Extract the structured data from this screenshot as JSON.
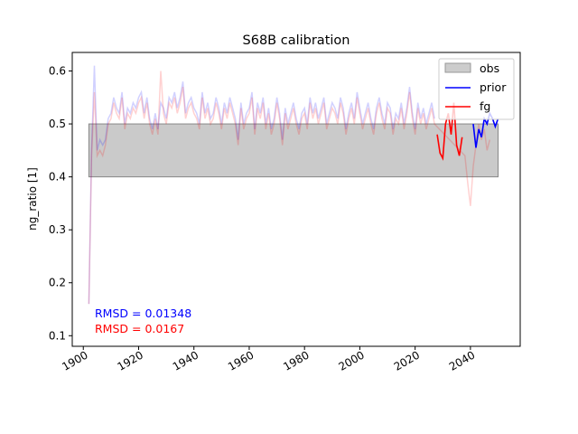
{
  "chart_data": {
    "type": "line",
    "title": "S68B calibration",
    "xlabel": "",
    "ylabel": "ng_ratio [1]",
    "xlim": [
      1896,
      2058
    ],
    "ylim": [
      0.08,
      0.635
    ],
    "xticks": [
      1900,
      1920,
      1940,
      1960,
      1980,
      2000,
      2020,
      2040
    ],
    "yticks": [
      0.1,
      0.2,
      0.3,
      0.4,
      0.5,
      0.6
    ],
    "grid": false,
    "legend": {
      "placement": "top-right",
      "entries": [
        "obs",
        "prior",
        "fg"
      ]
    },
    "obs_band": {
      "name": "obs",
      "x": [
        1902,
        2050
      ],
      "y": [
        0.4,
        0.5
      ],
      "color": "#bdbdbd"
    },
    "series": [
      {
        "name": "prior",
        "color": "#0000ff",
        "x_faint": [
          1902,
          1903,
          1904,
          1905,
          1906,
          1907,
          1908,
          1909,
          1910,
          1911,
          1912,
          1913,
          1914,
          1915,
          1916,
          1917,
          1918,
          1919,
          1920,
          1921,
          1922,
          1923,
          1924,
          1925,
          1926,
          1927,
          1928,
          1929,
          1930,
          1931,
          1932,
          1933,
          1934,
          1935,
          1936,
          1937,
          1938,
          1939,
          1940,
          1941,
          1942,
          1943,
          1944,
          1945,
          1946,
          1947,
          1948,
          1949,
          1950,
          1951,
          1952,
          1953,
          1954,
          1955,
          1956,
          1957,
          1958,
          1959,
          1960,
          1961,
          1962,
          1963,
          1964,
          1965,
          1966,
          1967,
          1968,
          1969,
          1970,
          1971,
          1972,
          1973,
          1974,
          1975,
          1976,
          1977,
          1978,
          1979,
          1980,
          1981,
          1982,
          1983,
          1984,
          1985,
          1986,
          1987,
          1988,
          1989,
          1990,
          1991,
          1992,
          1993,
          1994,
          1995,
          1996,
          1997,
          1998,
          1999,
          2000,
          2001,
          2002,
          2003,
          2004,
          2005,
          2006,
          2007,
          2008,
          2009,
          2010,
          2011,
          2012,
          2013,
          2014,
          2015,
          2016,
          2017,
          2018,
          2019,
          2020,
          2021,
          2022,
          2023,
          2024,
          2025,
          2026,
          2027
        ],
        "y_faint": [
          0.16,
          0.45,
          0.61,
          0.45,
          0.47,
          0.46,
          0.47,
          0.51,
          0.52,
          0.55,
          0.53,
          0.52,
          0.56,
          0.5,
          0.53,
          0.52,
          0.54,
          0.53,
          0.55,
          0.56,
          0.52,
          0.55,
          0.51,
          0.49,
          0.52,
          0.49,
          0.54,
          0.53,
          0.51,
          0.55,
          0.54,
          0.56,
          0.53,
          0.55,
          0.58,
          0.52,
          0.54,
          0.55,
          0.53,
          0.52,
          0.5,
          0.56,
          0.52,
          0.54,
          0.51,
          0.52,
          0.55,
          0.53,
          0.5,
          0.54,
          0.52,
          0.55,
          0.53,
          0.51,
          0.47,
          0.54,
          0.5,
          0.52,
          0.53,
          0.56,
          0.49,
          0.54,
          0.52,
          0.55,
          0.5,
          0.53,
          0.49,
          0.51,
          0.55,
          0.52,
          0.47,
          0.53,
          0.5,
          0.52,
          0.54,
          0.51,
          0.49,
          0.52,
          0.53,
          0.5,
          0.55,
          0.52,
          0.54,
          0.51,
          0.53,
          0.55,
          0.5,
          0.52,
          0.54,
          0.53,
          0.51,
          0.55,
          0.53,
          0.49,
          0.52,
          0.54,
          0.51,
          0.56,
          0.53,
          0.5,
          0.52,
          0.54,
          0.51,
          0.49,
          0.53,
          0.55,
          0.52,
          0.5,
          0.54,
          0.53,
          0.49,
          0.52,
          0.51,
          0.54,
          0.5,
          0.53,
          0.57,
          0.52,
          0.49,
          0.54,
          0.51,
          0.53,
          0.5,
          0.52,
          0.54,
          0.51
        ],
        "x_bold": [
          2041,
          2042,
          2043,
          2044,
          2045,
          2046,
          2047,
          2048,
          2049,
          2050
        ],
        "y_bold": [
          0.5,
          0.455,
          0.49,
          0.475,
          0.51,
          0.5,
          0.52,
          0.51,
          0.495,
          0.51
        ]
      },
      {
        "name": "fg",
        "color": "#ff0000",
        "x_faint": [
          1902,
          1903,
          1904,
          1905,
          1906,
          1907,
          1908,
          1909,
          1910,
          1911,
          1912,
          1913,
          1914,
          1915,
          1916,
          1917,
          1918,
          1919,
          1920,
          1921,
          1922,
          1923,
          1924,
          1925,
          1926,
          1927,
          1928,
          1929,
          1930,
          1931,
          1932,
          1933,
          1934,
          1935,
          1936,
          1937,
          1938,
          1939,
          1940,
          1941,
          1942,
          1943,
          1944,
          1945,
          1946,
          1947,
          1948,
          1949,
          1950,
          1951,
          1952,
          1953,
          1954,
          1955,
          1956,
          1957,
          1958,
          1959,
          1960,
          1961,
          1962,
          1963,
          1964,
          1965,
          1966,
          1967,
          1968,
          1969,
          1970,
          1971,
          1972,
          1973,
          1974,
          1975,
          1976,
          1977,
          1978,
          1979,
          1980,
          1981,
          1982,
          1983,
          1984,
          1985,
          1986,
          1987,
          1988,
          1989,
          1990,
          1991,
          1992,
          1993,
          1994,
          1995,
          1996,
          1997,
          1998,
          1999,
          2000,
          2001,
          2002,
          2003,
          2004,
          2005,
          2006,
          2007,
          2008,
          2009,
          2010,
          2011,
          2012,
          2013,
          2014,
          2015,
          2016,
          2017,
          2018,
          2019,
          2020,
          2021,
          2022,
          2023,
          2024,
          2025,
          2026,
          2027,
          2038,
          2039,
          2040,
          2041,
          2042,
          2043,
          2044,
          2045,
          2046,
          2047
        ],
        "y_faint": [
          0.16,
          0.44,
          0.56,
          0.44,
          0.45,
          0.44,
          0.46,
          0.5,
          0.51,
          0.54,
          0.52,
          0.51,
          0.55,
          0.49,
          0.52,
          0.51,
          0.53,
          0.52,
          0.54,
          0.55,
          0.51,
          0.54,
          0.5,
          0.48,
          0.51,
          0.48,
          0.6,
          0.52,
          0.5,
          0.54,
          0.53,
          0.55,
          0.52,
          0.54,
          0.57,
          0.51,
          0.53,
          0.54,
          0.52,
          0.51,
          0.49,
          0.55,
          0.51,
          0.53,
          0.5,
          0.51,
          0.54,
          0.52,
          0.49,
          0.53,
          0.51,
          0.54,
          0.52,
          0.5,
          0.46,
          0.53,
          0.49,
          0.51,
          0.52,
          0.55,
          0.48,
          0.53,
          0.51,
          0.54,
          0.49,
          0.52,
          0.48,
          0.5,
          0.54,
          0.51,
          0.46,
          0.52,
          0.49,
          0.51,
          0.53,
          0.5,
          0.48,
          0.51,
          0.52,
          0.49,
          0.54,
          0.51,
          0.53,
          0.5,
          0.52,
          0.54,
          0.49,
          0.51,
          0.53,
          0.52,
          0.5,
          0.54,
          0.52,
          0.48,
          0.51,
          0.53,
          0.5,
          0.55,
          0.52,
          0.49,
          0.51,
          0.53,
          0.5,
          0.48,
          0.52,
          0.54,
          0.51,
          0.49,
          0.53,
          0.52,
          0.48,
          0.51,
          0.5,
          0.53,
          0.49,
          0.52,
          0.56,
          0.51,
          0.48,
          0.53,
          0.5,
          0.52,
          0.49,
          0.51,
          0.53,
          0.5,
          0.44,
          0.39,
          0.345,
          0.42,
          0.46,
          0.5,
          0.47,
          0.49,
          0.45,
          0.47
        ],
        "x_bold": [
          2028,
          2029,
          2030,
          2031,
          2032,
          2033,
          2034,
          2035,
          2036,
          2037
        ],
        "y_bold": [
          0.48,
          0.445,
          0.435,
          0.5,
          0.52,
          0.48,
          0.54,
          0.46,
          0.44,
          0.475
        ]
      }
    ],
    "annotations": [
      {
        "text": "RMSD = 0.01348",
        "color": "#0000ff"
      },
      {
        "text": "RMSD = 0.0167",
        "color": "#ff0000"
      }
    ]
  }
}
